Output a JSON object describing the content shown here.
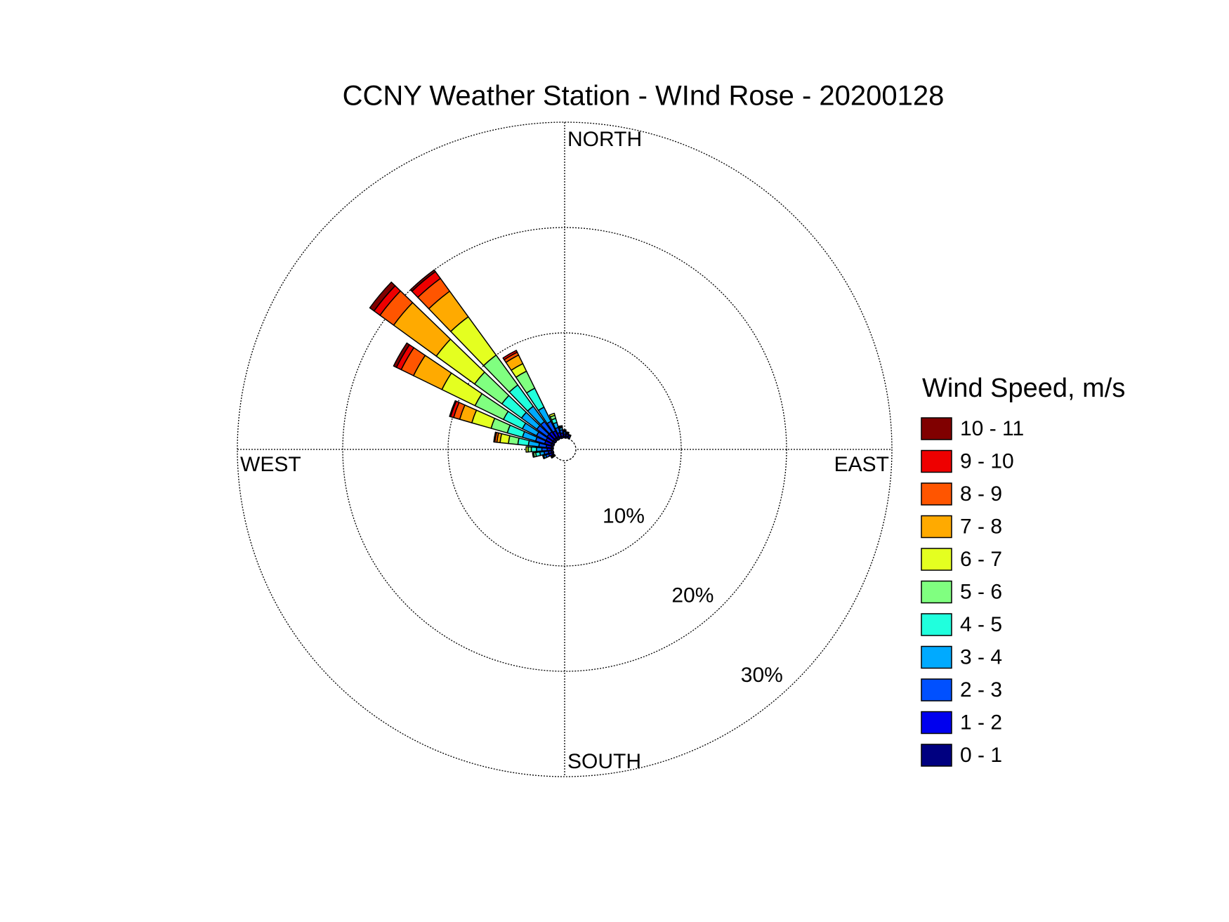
{
  "chart_data": {
    "type": "wind_rose",
    "title": "CCNY Weather Station - WInd Rose - 20200128",
    "legend_title": "Wind Speed, m/s",
    "direction_labels": [
      "NORTH",
      "EAST",
      "SOUTH",
      "WEST"
    ],
    "x": [
      0,
      10,
      20,
      240,
      250,
      260,
      270,
      280,
      290,
      300,
      310,
      320,
      330,
      340,
      350
    ],
    "rlim": [
      0,
      30
    ],
    "rticks": [
      {
        "value": 10,
        "label": "10%"
      },
      {
        "value": 20,
        "label": "20%"
      },
      {
        "value": 30,
        "label": "30%"
      }
    ],
    "series": [
      {
        "name": "0 - 1",
        "color": "#000080",
        "values": [
          0.2,
          0.2,
          0.1,
          0.1,
          0.2,
          0.2,
          0.2,
          0.2,
          0.3,
          0.3,
          0.3,
          0.3,
          0.3,
          0.2,
          0.2
        ]
      },
      {
        "name": "1 - 2",
        "color": "#0000ee",
        "values": [
          0.2,
          0.2,
          0.2,
          0.1,
          0.3,
          0.3,
          0.4,
          0.5,
          0.6,
          0.6,
          0.7,
          0.7,
          0.6,
          0.4,
          0.3
        ]
      },
      {
        "name": "2 - 3",
        "color": "#0050ff",
        "values": [
          0.2,
          0.1,
          0.1,
          0.1,
          0.3,
          0.4,
          0.5,
          0.7,
          0.9,
          1.0,
          1.2,
          1.2,
          1.0,
          0.5,
          0.3
        ]
      },
      {
        "name": "3 - 4",
        "color": "#00aaff",
        "values": [
          0.1,
          0.1,
          0,
          0.1,
          0.2,
          0.4,
          0.5,
          1.0,
          1.3,
          1.5,
          1.8,
          1.8,
          1.5,
          0.5,
          0.2
        ]
      },
      {
        "name": "4 - 5",
        "color": "#20ffdd",
        "values": [
          0.1,
          0,
          0,
          0,
          0.1,
          0.4,
          0.5,
          1.0,
          1.5,
          2.0,
          2.3,
          2.5,
          2.0,
          0.4,
          0.1
        ]
      },
      {
        "name": "5 - 6",
        "color": "#80ff80",
        "values": [
          0,
          0,
          0,
          0,
          0,
          0.2,
          0.3,
          0.9,
          1.6,
          3.0,
          3.2,
          3.5,
          1.8,
          0.3,
          0.1
        ]
      },
      {
        "name": "6 - 7",
        "color": "#e4ff20",
        "values": [
          0,
          0,
          0,
          0,
          0,
          0.1,
          0.2,
          0.8,
          1.9,
          3.5,
          4.5,
          4.5,
          0.8,
          0.2,
          0
        ]
      },
      {
        "name": "7 - 8",
        "color": "#ffaa00",
        "values": [
          0,
          0,
          0,
          0,
          0,
          0,
          0,
          0.3,
          1.2,
          3.0,
          5.0,
          3.0,
          0.9,
          0,
          0
        ]
      },
      {
        "name": "8 - 9",
        "color": "#ff5500",
        "values": [
          0,
          0,
          0,
          0,
          0,
          0,
          0,
          0.2,
          0.6,
          1.3,
          1.6,
          1.5,
          0.3,
          0,
          0
        ]
      },
      {
        "name": "9 - 10",
        "color": "#ee0000",
        "values": [
          0,
          0,
          0,
          0,
          0,
          0,
          0,
          0.1,
          0.3,
          0.5,
          0.7,
          0.8,
          0.2,
          0,
          0
        ]
      },
      {
        "name": "10 - 11",
        "color": "#800000",
        "values": [
          0,
          0,
          0,
          0,
          0,
          0,
          0,
          0,
          0.1,
          0.3,
          0.5,
          0.2,
          0,
          0,
          0
        ]
      }
    ]
  }
}
